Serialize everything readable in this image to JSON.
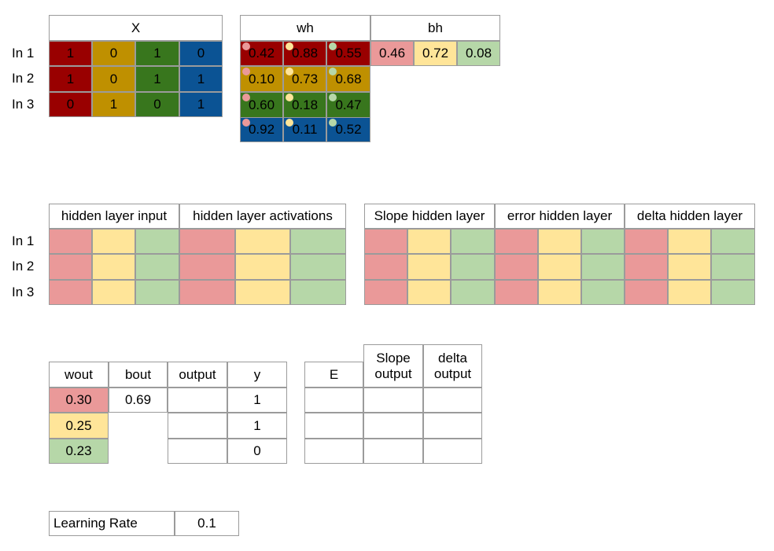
{
  "colors": {
    "red": "#990000",
    "gold": "#bf9000",
    "green": "#38761d",
    "blue": "#0b5394",
    "light_red": "#ea9999",
    "light_yellow": "#ffe599",
    "light_green": "#b6d7a8",
    "grid": "#9b9b9b"
  },
  "row_labels": [
    "In 1",
    "In 2",
    "In 3"
  ],
  "x_table": {
    "header": "X",
    "rows": [
      [
        "1",
        "0",
        "1",
        "0"
      ],
      [
        "1",
        "0",
        "1",
        "1"
      ],
      [
        "0",
        "1",
        "0",
        "1"
      ]
    ]
  },
  "wh_table": {
    "header": "wh",
    "rows": [
      [
        "0.42",
        "0.88",
        "0.55"
      ],
      [
        "0.10",
        "0.73",
        "0.68"
      ],
      [
        "0.60",
        "0.18",
        "0.47"
      ],
      [
        "0.92",
        "0.11",
        "0.52"
      ]
    ]
  },
  "bh_table": {
    "header": "bh",
    "values": [
      "0.46",
      "0.72",
      "0.08"
    ]
  },
  "hidden_group": {
    "input_header": "hidden layer input",
    "activations_header": "hidden layer activations"
  },
  "error_group": {
    "slope_header": "Slope hidden layer",
    "error_header": "error hidden layer",
    "delta_header": "delta hidden layer"
  },
  "output_group": {
    "wout_header": "wout",
    "bout_header": "bout",
    "output_header": "output",
    "y_header": "y",
    "wout_values": [
      "0.30",
      "0.25",
      "0.23"
    ],
    "bout_value": "0.69",
    "y_values": [
      "1",
      "1",
      "0"
    ]
  },
  "error_out_group": {
    "e_header": "E",
    "slope_header_1": "Slope",
    "slope_header_2": "output",
    "delta_header_1": "delta",
    "delta_header_2": "output"
  },
  "learning_rate": {
    "label": "Learning Rate",
    "value": "0.1"
  }
}
